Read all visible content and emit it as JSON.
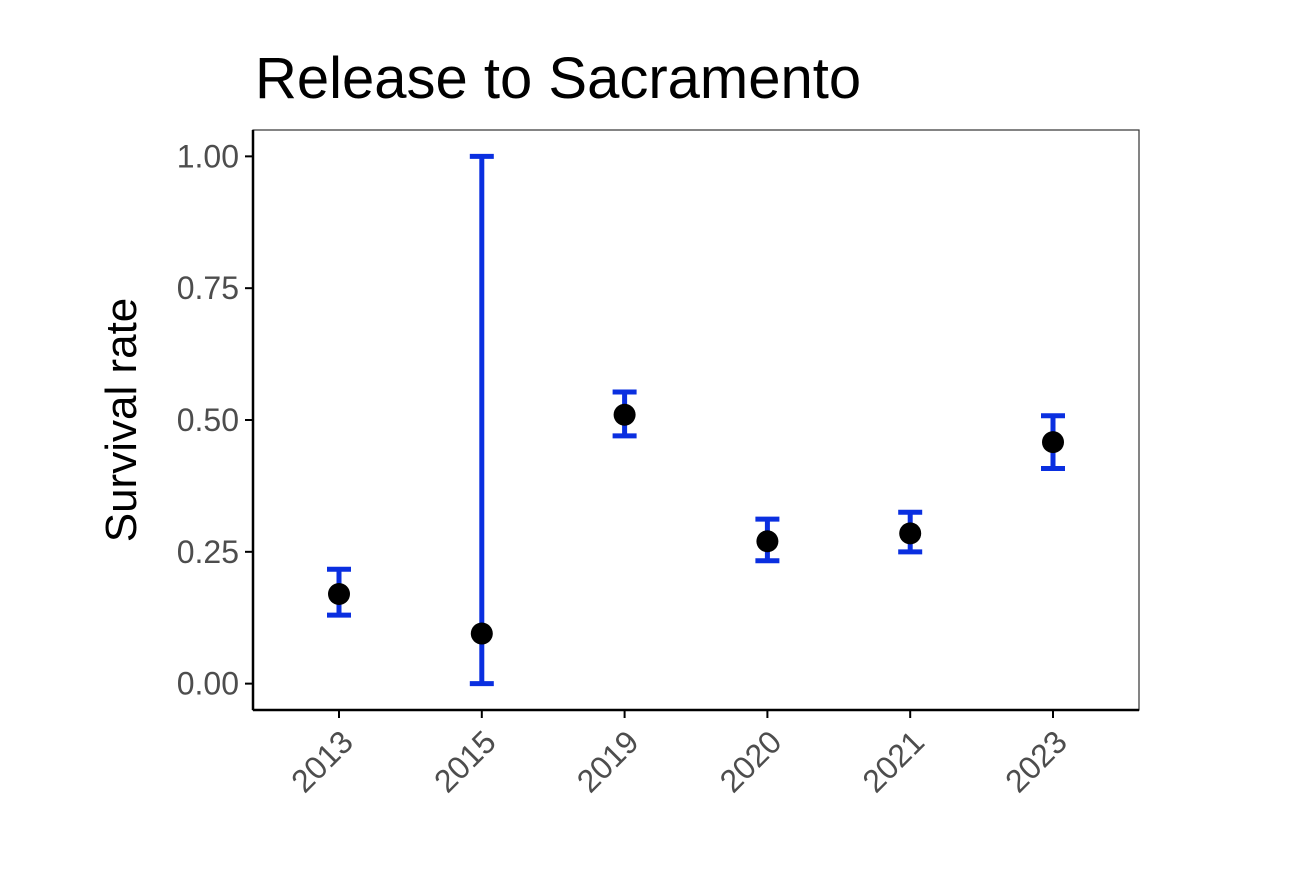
{
  "chart_data": {
    "type": "scatter",
    "title": "Release to Sacramento",
    "xlabel": "",
    "ylabel": "Survival rate",
    "categories": [
      "2013",
      "2015",
      "2019",
      "2020",
      "2021",
      "2023"
    ],
    "series": [
      {
        "estimate": [
          0.17,
          0.095,
          0.51,
          0.27,
          0.285,
          0.458
        ],
        "lower": [
          0.13,
          0.0,
          0.47,
          0.233,
          0.25,
          0.408
        ],
        "upper": [
          0.217,
          1.0,
          0.553,
          0.312,
          0.325,
          0.508
        ]
      }
    ],
    "ylim": [
      -0.05,
      1.05
    ],
    "yticks": [
      0.0,
      0.25,
      0.5,
      0.75,
      1.0
    ],
    "ytick_labels": [
      "0.00",
      "0.25",
      "0.50",
      "0.75",
      "1.00"
    ],
    "grid": false,
    "legend": "none",
    "colors": {
      "error_bar": "#0a2fe0",
      "point": "#000000",
      "axis": "#000000",
      "tick_label": "#4d4d4d"
    }
  }
}
